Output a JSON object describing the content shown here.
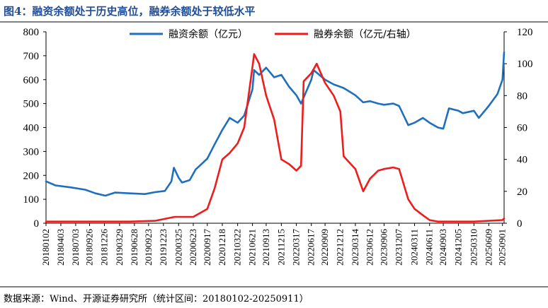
{
  "title": "图4：融资余额处于历史高位，融券余额处于较低水平",
  "source": "数据来源：Wind、开源证券研究所（统计区间：20180102-20250911）",
  "colors": {
    "title": "#1f4e9a",
    "financing": "#1f6fbf",
    "securities": "#ee1c1c",
    "rule": "#000000"
  },
  "chart_data": {
    "type": "line",
    "x_range": [
      "20180102",
      "20250911"
    ],
    "x_ticks": [
      "20180102",
      "20180403",
      "20180703",
      "20180926",
      "20181226",
      "20190329",
      "20190628",
      "20190923",
      "20191223",
      "20200325",
      "20200623",
      "20200917",
      "20201218",
      "20210322",
      "20210621",
      "20210913",
      "20211215",
      "20220317",
      "20220617",
      "20220909",
      "20221212",
      "20230314",
      "20230612",
      "20230906",
      "20231207",
      "20240311",
      "20240611",
      "20240903",
      "20241205",
      "20250310",
      "20250609",
      "20250901"
    ],
    "y_left": {
      "min": 0,
      "max": 800,
      "ticks": [
        "0",
        "100",
        "200",
        "300",
        "400",
        "500",
        "600",
        "700",
        "800"
      ]
    },
    "y_right": {
      "min": 0,
      "max": 120,
      "ticks": [
        "0",
        "20",
        "40",
        "60",
        "80",
        "100",
        "120"
      ]
    },
    "grid": false,
    "legend_position": "top",
    "series": [
      {
        "name": "融资余额（亿元）",
        "axis": "left",
        "points": [
          [
            "20180102",
            175
          ],
          [
            "20180301",
            158
          ],
          [
            "20180601",
            150
          ],
          [
            "20180901",
            140
          ],
          [
            "20181101",
            125
          ],
          [
            "20190101",
            115
          ],
          [
            "20190301",
            128
          ],
          [
            "20190601",
            125
          ],
          [
            "20190901",
            122
          ],
          [
            "20191101",
            130
          ],
          [
            "20200101",
            135
          ],
          [
            "20200210",
            175
          ],
          [
            "20200225",
            232
          ],
          [
            "20200325",
            190
          ],
          [
            "20200415",
            170
          ],
          [
            "20200601",
            180
          ],
          [
            "20200708",
            225
          ],
          [
            "20200801",
            240
          ],
          [
            "20200917",
            270
          ],
          [
            "20201101",
            330
          ],
          [
            "20201218",
            390
          ],
          [
            "20210201",
            440
          ],
          [
            "20210322",
            420
          ],
          [
            "20210501",
            450
          ],
          [
            "20210621",
            560
          ],
          [
            "20210701",
            640
          ],
          [
            "20210801",
            620
          ],
          [
            "20210913",
            650
          ],
          [
            "20211101",
            610
          ],
          [
            "20211215",
            620
          ],
          [
            "20220201",
            570
          ],
          [
            "20220317",
            535
          ],
          [
            "20220415",
            500
          ],
          [
            "20220617",
            600
          ],
          [
            "20220701",
            640
          ],
          [
            "20220909",
            600
          ],
          [
            "20221101",
            580
          ],
          [
            "20221212",
            570
          ],
          [
            "20230101",
            565
          ],
          [
            "20230314",
            535
          ],
          [
            "20230501",
            505
          ],
          [
            "20230612",
            510
          ],
          [
            "20230801",
            500
          ],
          [
            "20230906",
            495
          ],
          [
            "20231101",
            500
          ],
          [
            "20231207",
            490
          ],
          [
            "20240201",
            410
          ],
          [
            "20240311",
            420
          ],
          [
            "20240501",
            440
          ],
          [
            "20240611",
            420
          ],
          [
            "20240801",
            400
          ],
          [
            "20240903",
            395
          ],
          [
            "20241008",
            480
          ],
          [
            "20241205",
            470
          ],
          [
            "20250101",
            460
          ],
          [
            "20250310",
            470
          ],
          [
            "20250409",
            440
          ],
          [
            "20250609",
            490
          ],
          [
            "20250801",
            540
          ],
          [
            "20250901",
            600
          ],
          [
            "20250911",
            715
          ]
        ]
      },
      {
        "name": "融券余额（亿元/右轴）",
        "axis": "right",
        "points": [
          [
            "20180102",
            1
          ],
          [
            "20180601",
            1
          ],
          [
            "20190101",
            1
          ],
          [
            "20190601",
            1
          ],
          [
            "20191101",
            1.5
          ],
          [
            "20200301",
            4
          ],
          [
            "20200623",
            4
          ],
          [
            "20200917",
            9
          ],
          [
            "20201101",
            22
          ],
          [
            "20201218",
            40
          ],
          [
            "20210201",
            44
          ],
          [
            "20210322",
            50
          ],
          [
            "20210501",
            60
          ],
          [
            "20210621",
            98
          ],
          [
            "20210701",
            106
          ],
          [
            "20210801",
            100
          ],
          [
            "20210913",
            80
          ],
          [
            "20211101",
            65
          ],
          [
            "20211215",
            40
          ],
          [
            "20220201",
            37
          ],
          [
            "20220317",
            33
          ],
          [
            "20220415",
            36
          ],
          [
            "20220501",
            89
          ],
          [
            "20220617",
            94
          ],
          [
            "20220720",
            100
          ],
          [
            "20220909",
            88
          ],
          [
            "20221101",
            80
          ],
          [
            "20221212",
            70
          ],
          [
            "20230101",
            42
          ],
          [
            "20230314",
            34
          ],
          [
            "20230501",
            20
          ],
          [
            "20230612",
            28
          ],
          [
            "20230801",
            33
          ],
          [
            "20230906",
            34
          ],
          [
            "20231101",
            35
          ],
          [
            "20231207",
            34
          ],
          [
            "20240201",
            15
          ],
          [
            "20240311",
            9
          ],
          [
            "20240501",
            5
          ],
          [
            "20240611",
            2
          ],
          [
            "20240801",
            1
          ],
          [
            "20240903",
            1
          ],
          [
            "20241205",
            1
          ],
          [
            "20250310",
            1
          ],
          [
            "20250609",
            1.5
          ],
          [
            "20250901",
            2
          ],
          [
            "20250911",
            3
          ]
        ]
      }
    ]
  }
}
